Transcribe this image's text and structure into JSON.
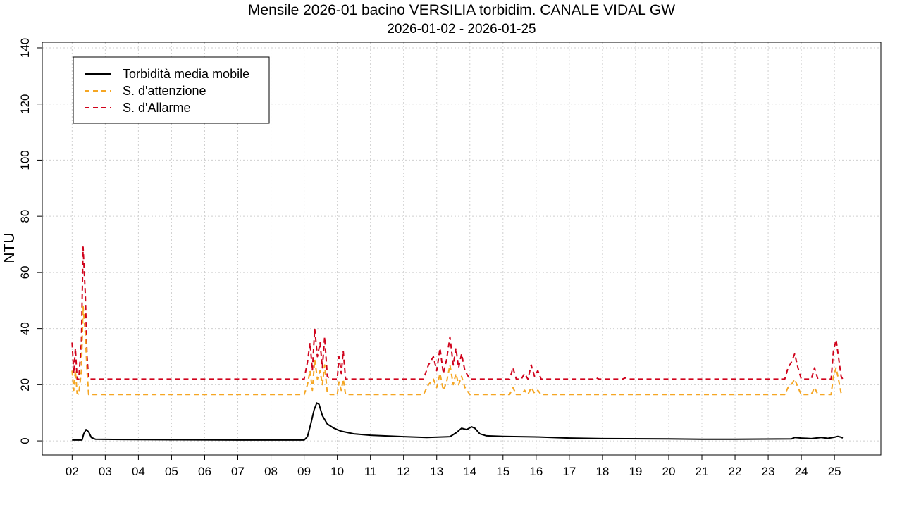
{
  "chart_data": {
    "type": "line",
    "title": "Mensile 2026-01 bacino VERSILIA torbidim. CANALE VIDAL GW",
    "subtitle": "2026-01-02 - 2026-01-25",
    "xlabel": "",
    "ylabel": "NTU",
    "xlim": [
      1.1,
      26.4
    ],
    "ylim": [
      -5,
      142
    ],
    "x_ticks": [
      2,
      3,
      4,
      5,
      6,
      7,
      8,
      9,
      10,
      11,
      12,
      13,
      14,
      15,
      16,
      17,
      18,
      19,
      20,
      21,
      22,
      23,
      24,
      25
    ],
    "x_tick_labels": [
      "02",
      "03",
      "04",
      "05",
      "06",
      "07",
      "08",
      "09",
      "10",
      "11",
      "12",
      "13",
      "14",
      "15",
      "16",
      "17",
      "18",
      "19",
      "20",
      "21",
      "22",
      "23",
      "24",
      "25"
    ],
    "y_ticks": [
      0,
      20,
      40,
      60,
      80,
      100,
      120,
      140
    ],
    "y_tick_labels": [
      "0",
      "20",
      "40",
      "60",
      "80",
      "100",
      "120",
      "140"
    ],
    "grid": true,
    "legend_position": "top-left",
    "series": [
      {
        "name": "Torbidità media mobile",
        "color": "#000000",
        "dash": "solid",
        "points": [
          [
            2.0,
            0.3
          ],
          [
            2.3,
            0.3
          ],
          [
            2.35,
            2.5
          ],
          [
            2.42,
            4.0
          ],
          [
            2.5,
            3.2
          ],
          [
            2.58,
            1.2
          ],
          [
            2.7,
            0.6
          ],
          [
            3.5,
            0.5
          ],
          [
            5.0,
            0.4
          ],
          [
            7.0,
            0.3
          ],
          [
            8.0,
            0.3
          ],
          [
            9.0,
            0.3
          ],
          [
            9.1,
            1.5
          ],
          [
            9.2,
            6.0
          ],
          [
            9.3,
            11.0
          ],
          [
            9.38,
            13.5
          ],
          [
            9.45,
            13.0
          ],
          [
            9.55,
            9.0
          ],
          [
            9.7,
            6.0
          ],
          [
            9.9,
            4.5
          ],
          [
            10.1,
            3.5
          ],
          [
            10.5,
            2.5
          ],
          [
            11.0,
            2.0
          ],
          [
            12.0,
            1.5
          ],
          [
            12.7,
            1.2
          ],
          [
            13.4,
            1.5
          ],
          [
            13.6,
            3.0
          ],
          [
            13.75,
            4.5
          ],
          [
            13.9,
            4.0
          ],
          [
            14.05,
            5.0
          ],
          [
            14.15,
            4.5
          ],
          [
            14.3,
            2.5
          ],
          [
            14.5,
            1.8
          ],
          [
            15.0,
            1.6
          ],
          [
            16.0,
            1.4
          ],
          [
            17.0,
            1.0
          ],
          [
            18.0,
            0.8
          ],
          [
            20.0,
            0.7
          ],
          [
            21.0,
            0.6
          ],
          [
            22.0,
            0.6
          ],
          [
            23.7,
            0.7
          ],
          [
            23.8,
            1.2
          ],
          [
            24.0,
            1.0
          ],
          [
            24.3,
            0.8
          ],
          [
            24.6,
            1.2
          ],
          [
            24.8,
            0.9
          ],
          [
            25.0,
            1.3
          ],
          [
            25.1,
            1.6
          ],
          [
            25.2,
            1.3
          ],
          [
            25.25,
            1.0
          ]
        ]
      },
      {
        "name": "S. d'attenzione",
        "color": "#F5A623",
        "dash": "dashed",
        "points": [
          [
            2.0,
            25
          ],
          [
            2.05,
            18
          ],
          [
            2.1,
            25
          ],
          [
            2.15,
            17
          ],
          [
            2.2,
            16.5
          ],
          [
            2.28,
            25
          ],
          [
            2.33,
            48
          ],
          [
            2.4,
            38
          ],
          [
            2.45,
            25
          ],
          [
            2.5,
            16.5
          ],
          [
            9.0,
            16.5
          ],
          [
            9.1,
            20
          ],
          [
            9.18,
            25
          ],
          [
            9.25,
            18
          ],
          [
            9.32,
            29
          ],
          [
            9.4,
            22
          ],
          [
            9.48,
            25
          ],
          [
            9.55,
            20
          ],
          [
            9.62,
            27
          ],
          [
            9.7,
            17
          ],
          [
            9.8,
            16.5
          ],
          [
            10.0,
            16.5
          ],
          [
            10.05,
            21
          ],
          [
            10.12,
            18
          ],
          [
            10.18,
            22
          ],
          [
            10.25,
            16.5
          ],
          [
            12.6,
            16.5
          ],
          [
            12.75,
            20
          ],
          [
            12.9,
            22
          ],
          [
            13.0,
            19
          ],
          [
            13.1,
            24
          ],
          [
            13.2,
            18
          ],
          [
            13.3,
            21
          ],
          [
            13.4,
            27
          ],
          [
            13.5,
            20
          ],
          [
            13.58,
            24
          ],
          [
            13.66,
            20
          ],
          [
            13.75,
            23
          ],
          [
            13.85,
            19
          ],
          [
            14.0,
            16.5
          ],
          [
            15.2,
            16.5
          ],
          [
            15.3,
            19
          ],
          [
            15.4,
            16.5
          ],
          [
            15.55,
            16.5
          ],
          [
            15.65,
            18
          ],
          [
            15.75,
            16.5
          ],
          [
            15.85,
            19
          ],
          [
            15.95,
            17
          ],
          [
            16.05,
            18
          ],
          [
            16.15,
            16.5
          ],
          [
            23.5,
            16.5
          ],
          [
            23.6,
            19
          ],
          [
            23.7,
            20
          ],
          [
            23.8,
            22
          ],
          [
            23.9,
            19
          ],
          [
            24.0,
            16.5
          ],
          [
            24.3,
            16.5
          ],
          [
            24.4,
            19
          ],
          [
            24.5,
            16.5
          ],
          [
            24.9,
            16.5
          ],
          [
            24.97,
            23
          ],
          [
            25.05,
            26
          ],
          [
            25.12,
            22
          ],
          [
            25.2,
            17
          ],
          [
            25.25,
            16.5
          ]
        ]
      },
      {
        "name": "S. d'Allarme",
        "color": "#D0021B",
        "dash": "dashed",
        "points": [
          [
            2.0,
            35
          ],
          [
            2.05,
            24
          ],
          [
            2.1,
            33
          ],
          [
            2.15,
            22
          ],
          [
            2.2,
            22
          ],
          [
            2.28,
            35
          ],
          [
            2.33,
            69
          ],
          [
            2.4,
            52
          ],
          [
            2.45,
            30
          ],
          [
            2.5,
            22
          ],
          [
            9.0,
            22
          ],
          [
            9.1,
            28
          ],
          [
            9.18,
            35
          ],
          [
            9.25,
            25
          ],
          [
            9.32,
            40
          ],
          [
            9.4,
            30
          ],
          [
            9.48,
            35
          ],
          [
            9.55,
            26
          ],
          [
            9.62,
            37
          ],
          [
            9.7,
            23
          ],
          [
            9.8,
            22
          ],
          [
            10.0,
            22
          ],
          [
            10.05,
            30
          ],
          [
            10.12,
            24
          ],
          [
            10.18,
            32
          ],
          [
            10.25,
            22
          ],
          [
            12.6,
            22
          ],
          [
            12.75,
            27
          ],
          [
            12.9,
            30
          ],
          [
            13.0,
            25
          ],
          [
            13.1,
            33
          ],
          [
            13.2,
            24
          ],
          [
            13.3,
            29
          ],
          [
            13.4,
            37
          ],
          [
            13.5,
            27
          ],
          [
            13.58,
            33
          ],
          [
            13.66,
            26
          ],
          [
            13.75,
            31
          ],
          [
            13.85,
            25
          ],
          [
            14.0,
            22
          ],
          [
            15.2,
            22
          ],
          [
            15.3,
            26
          ],
          [
            15.4,
            22
          ],
          [
            15.55,
            22
          ],
          [
            15.65,
            24
          ],
          [
            15.75,
            22
          ],
          [
            15.85,
            27
          ],
          [
            15.95,
            23
          ],
          [
            16.05,
            25
          ],
          [
            16.15,
            22
          ],
          [
            17.7,
            22
          ],
          [
            17.8,
            22.5
          ],
          [
            17.9,
            22
          ],
          [
            18.6,
            22
          ],
          [
            18.7,
            22.5
          ],
          [
            18.8,
            22
          ],
          [
            23.5,
            22
          ],
          [
            23.6,
            26
          ],
          [
            23.7,
            28
          ],
          [
            23.8,
            31
          ],
          [
            23.9,
            26
          ],
          [
            24.0,
            22
          ],
          [
            24.3,
            22
          ],
          [
            24.4,
            26
          ],
          [
            24.5,
            22
          ],
          [
            24.9,
            22
          ],
          [
            24.97,
            32
          ],
          [
            25.05,
            36
          ],
          [
            25.12,
            30
          ],
          [
            25.2,
            23
          ],
          [
            25.25,
            22
          ]
        ]
      }
    ]
  }
}
